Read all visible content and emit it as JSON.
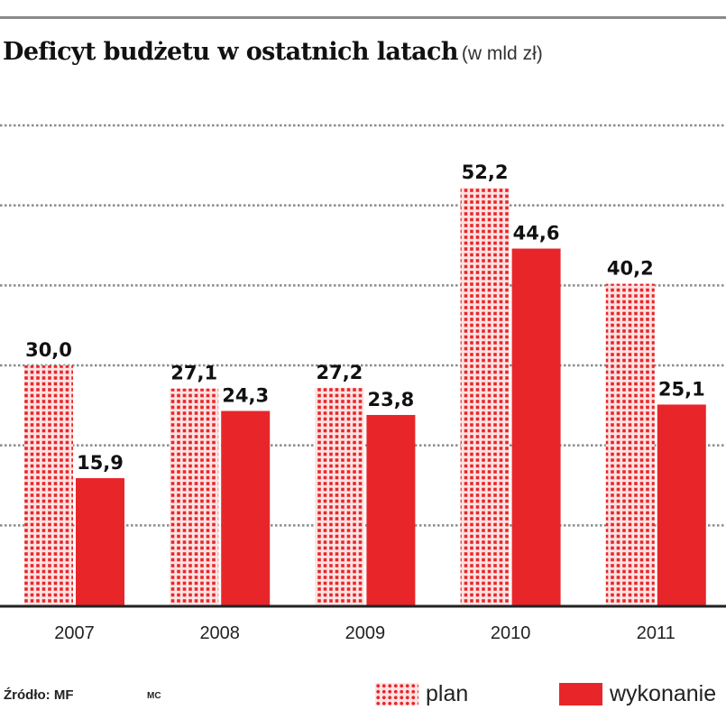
{
  "colors": {
    "accent": "#e8262a",
    "plan_bg": "#fde3e3",
    "grid": "#8a8a8a",
    "axis": "#222222"
  },
  "header": {
    "title": "Deficyt budżetu w ostatnich latach",
    "unit": "(w mld zł)"
  },
  "footer": {
    "source": "Źródło: MF",
    "author": "MC"
  },
  "legend": [
    {
      "name": "plan",
      "style": "dotted"
    },
    {
      "name": "wykonanie",
      "style": "solid"
    }
  ],
  "chart_data": {
    "type": "bar",
    "title": "Deficyt budżetu w ostatnich latach",
    "subtitle": "(w mld zł)",
    "xlabel": "",
    "ylabel": "",
    "categories": [
      "2007",
      "2008",
      "2009",
      "2010",
      "2011"
    ],
    "series": [
      {
        "name": "plan",
        "values": [
          30.0,
          27.1,
          27.2,
          52.2,
          40.2
        ],
        "labels": [
          "30,0",
          "27,1",
          "27,2",
          "52,2",
          "40,2"
        ]
      },
      {
        "name": "wykonanie",
        "values": [
          15.9,
          24.3,
          23.8,
          44.6,
          25.1
        ],
        "labels": [
          "15,9",
          "24,3",
          "23,8",
          "44,6",
          "25,1"
        ]
      }
    ],
    "ylim": [
      0,
      60
    ],
    "grid": true,
    "grid_step": 10,
    "y_tick_labels_shown": false,
    "legend_position": "bottom-right"
  }
}
